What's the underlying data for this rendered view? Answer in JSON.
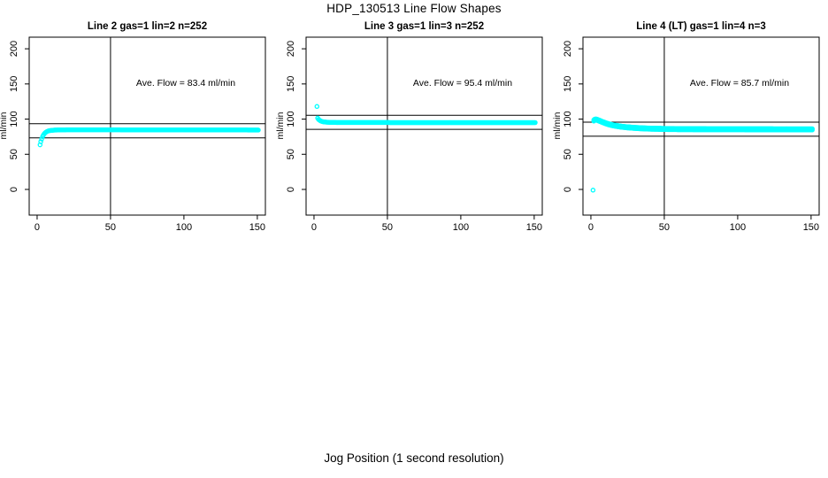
{
  "page": {
    "title": "HDP_130513  Line Flow Shapes",
    "xlabel": "Jog Position (1 second resolution)"
  },
  "colors": {
    "points": "#00ffff",
    "axis": "#000000",
    "background": "#ffffff"
  },
  "chart_data": [
    {
      "type": "scatter",
      "title": "Line 2 gas=1 lin=2 n=252",
      "ylabel": "ml/min",
      "annotation": "Ave. Flow =  83.4  ml/min",
      "ave_flow": 83.4,
      "hlines": [
        93.4,
        73.4
      ],
      "vline": 50,
      "xlim": [
        -5.4,
        155.5
      ],
      "ylim": [
        -36.5,
        216.5
      ],
      "x_ticks": [
        0,
        50,
        100,
        150
      ],
      "y_ticks": [
        0,
        50,
        100,
        150,
        200
      ],
      "grid": false,
      "marker": "open-circle",
      "x_step": 0.6,
      "band_offsets": [
        0
      ],
      "outliers": [
        [
          2,
          63.5
        ]
      ],
      "keypoints": [
        [
          2.5,
          68
        ],
        [
          3,
          71
        ],
        [
          3.5,
          74
        ],
        [
          4,
          76.5
        ],
        [
          5,
          79.5
        ],
        [
          6,
          81.5
        ],
        [
          7,
          82.7
        ],
        [
          8,
          83.4
        ],
        [
          10,
          84.1
        ],
        [
          12,
          84.4
        ],
        [
          15,
          84.6
        ],
        [
          20,
          84.8
        ],
        [
          30,
          84.8
        ],
        [
          50,
          84.8
        ],
        [
          80,
          84.7
        ],
        [
          120,
          84.6
        ],
        [
          151,
          84.5
        ]
      ]
    },
    {
      "type": "scatter",
      "title": "Line 3 gas=1 lin=3 n=252",
      "ylabel": "ml/min",
      "annotation": "Ave. Flow =  95.4  ml/min",
      "ave_flow": 95.4,
      "hlines": [
        105.4,
        85.4
      ],
      "vline": 50,
      "xlim": [
        -5.4,
        155.5
      ],
      "ylim": [
        -36.5,
        216.5
      ],
      "x_ticks": [
        0,
        50,
        100,
        150
      ],
      "y_ticks": [
        0,
        50,
        100,
        150,
        200
      ],
      "grid": false,
      "marker": "open-circle",
      "x_step": 0.6,
      "band_offsets": [
        0
      ],
      "outliers": [
        [
          2,
          118
        ]
      ],
      "keypoints": [
        [
          2.5,
          101.5
        ],
        [
          3,
          99.8
        ],
        [
          4,
          98
        ],
        [
          5,
          97
        ],
        [
          6,
          96.3
        ],
        [
          8,
          95.7
        ],
        [
          12,
          95.3
        ],
        [
          20,
          95.1
        ],
        [
          50,
          95.1
        ],
        [
          100,
          95
        ],
        [
          151,
          95
        ]
      ]
    },
    {
      "type": "scatter",
      "title": "Line 4 (LT) gas=1 lin=4 n=3",
      "ylabel": "ml/min",
      "annotation": "Ave. Flow =  85.7  ml/min",
      "ave_flow": 85.7,
      "hlines": [
        95.7,
        75.7
      ],
      "vline": 50,
      "xlim": [
        -5.4,
        155.5
      ],
      "ylim": [
        -36.5,
        216.5
      ],
      "x_ticks": [
        0,
        50,
        100,
        150
      ],
      "y_ticks": [
        0,
        50,
        100,
        150,
        200
      ],
      "grid": false,
      "marker": "open-circle",
      "x_step": 0.6,
      "band_offsets": [
        0.8,
        -0.8
      ],
      "outliers": [
        [
          1.5,
          -1
        ]
      ],
      "keypoints": [
        [
          2,
          98
        ],
        [
          2.5,
          99
        ],
        [
          3,
          99.5
        ],
        [
          4,
          99.2
        ],
        [
          5,
          98.4
        ],
        [
          6,
          97.5
        ],
        [
          8,
          95.8
        ],
        [
          10,
          94.2
        ],
        [
          12,
          92.8
        ],
        [
          15,
          91.2
        ],
        [
          20,
          89.4
        ],
        [
          25,
          88.3
        ],
        [
          30,
          87.5
        ],
        [
          35,
          86.9
        ],
        [
          40,
          86.5
        ],
        [
          50,
          86
        ],
        [
          60,
          85.8
        ],
        [
          80,
          85.6
        ],
        [
          100,
          85.6
        ],
        [
          120,
          85.5
        ],
        [
          151,
          85.4
        ]
      ]
    }
  ]
}
